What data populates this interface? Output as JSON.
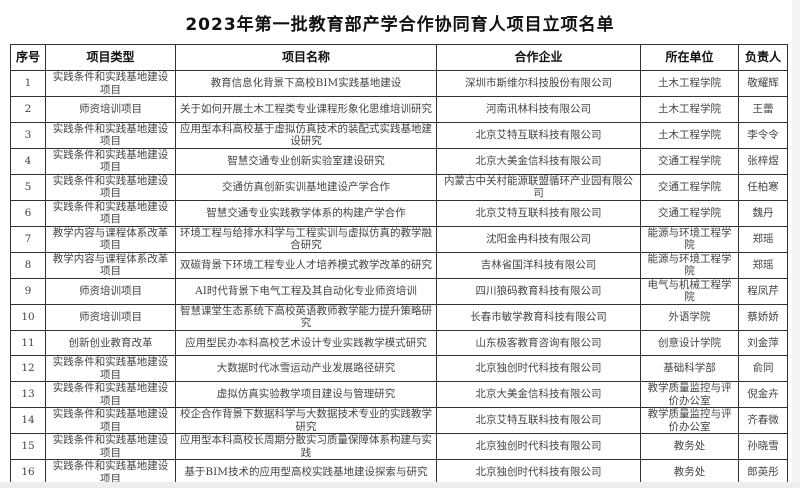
{
  "title": "2023年第一批教育部产学合作协同育人项目立项名单",
  "columns": [
    "序号",
    "项目类型",
    "项目名称",
    "合作企业",
    "所在单位",
    "负责人"
  ],
  "rows": [
    {
      "no": "1",
      "type": "实践条件和实践基地建设项目",
      "name": "教育信息化背景下高校BIM实践基地建设",
      "company": "深圳市斯维尔科技股份有限公司",
      "unit": "土木工程学院",
      "leader": "敬耀辉"
    },
    {
      "no": "2",
      "type": "师资培训项目",
      "name": "关于如何开展土木工程类专业课程形象化思维培训研究",
      "company": "河南讯林科技有限公司",
      "unit": "土木工程学院",
      "leader": "王蕾"
    },
    {
      "no": "3",
      "type": "实践条件和实践基地建设项目",
      "name": "应用型本科高校基于虚拟仿真技术的装配式实践基地建设研究",
      "company": "北京艾特互联科技有限公司",
      "unit": "土木工程学院",
      "leader": "李令令"
    },
    {
      "no": "4",
      "type": "实践条件和实践基地建设项目",
      "name": "智慧交通专业创新实验室建设研究",
      "company": "北京大美金信科技有限公司",
      "unit": "交通工程学院",
      "leader": "张梓煜"
    },
    {
      "no": "5",
      "type": "实践条件和实践基地建设项目",
      "name": "交通仿真创新实训基地建设产学合作",
      "company": "内蒙古中关村能源联盟循环产业园有限公司",
      "unit": "交通工程学院",
      "leader": "任柏寒"
    },
    {
      "no": "6",
      "type": "实践条件和实践基地建设项目",
      "name": "智慧交通专业实践教学体系的构建产学合作",
      "company": "北京艾特互联科技有限公司",
      "unit": "交通工程学院",
      "leader": "魏丹"
    },
    {
      "no": "7",
      "type": "教学内容与课程体系改革项目",
      "name": "环境工程与给排水科学与工程实训与虚拟仿真的教学融合研究",
      "company": "沈阳金冉科技有限公司",
      "unit": "能源与环境工程学院",
      "leader": "郑瑶"
    },
    {
      "no": "8",
      "type": "教学内容与课程体系改革项目",
      "name": "双碳背景下环境工程专业人才培养模式教学改革的研究",
      "company": "吉林省国洋科技有限公司",
      "unit": "能源与环境工程学院",
      "leader": "郑瑶"
    },
    {
      "no": "9",
      "type": "师资培训项目",
      "name": "AI时代背景下电气工程及其自动化专业师资培训",
      "company": "四川狼码教育科技有限公司",
      "unit": "电气与机械工程学院",
      "leader": "程凤芹"
    },
    {
      "no": "10",
      "type": "师资培训项目",
      "name": "智慧课堂生态系统下高校英语教师教学能力提升策略研究",
      "company": "长春市敏学教育科技有限公司",
      "unit": "外语学院",
      "leader": "蔡娇娇"
    },
    {
      "no": "11",
      "type": "创新创业教育改革",
      "name": "应用型民办本科高校艺术设计专业实践教学模式研究",
      "company": "山东极客教育咨询有限公司",
      "unit": "创意设计学院",
      "leader": "刘金萍"
    },
    {
      "no": "12",
      "type": "实践条件和实践基地建设项目",
      "name": "大数据时代冰雪运动产业发展路径研究",
      "company": "北京独创时代科技有限公司",
      "unit": "基础科学部",
      "leader": "俞同"
    },
    {
      "no": "13",
      "type": "实践条件和实践基地建设项目",
      "name": "虚拟仿真实验教学项目建设与管理研究",
      "company": "北京大美金信科技有限公司",
      "unit": "教学质量监控与评价办公室",
      "leader": "倪金卉"
    },
    {
      "no": "14",
      "type": "实践条件和实践基地建设项目",
      "name": "校企合作背景下数据科学与大数据技术专业的实践教学研究",
      "company": "北京艾特互联科技有限公司",
      "unit": "教学质量监控与评价办公室",
      "leader": "齐春微"
    },
    {
      "no": "15",
      "type": "实践条件和实践基地建设项目",
      "name": "应用型本科高校长周期分散实习质量保障体系构建与实践",
      "company": "北京独创时代科技有限公司",
      "unit": "教务处",
      "leader": "孙晓雪"
    },
    {
      "no": "16",
      "type": "实践条件和实践基地建设项目",
      "name": "基于BIM技术的应用型高校实践基地建设探索与研究",
      "company": "北京独创时代科技有限公司",
      "unit": "教务处",
      "leader": "郎英彤"
    }
  ]
}
